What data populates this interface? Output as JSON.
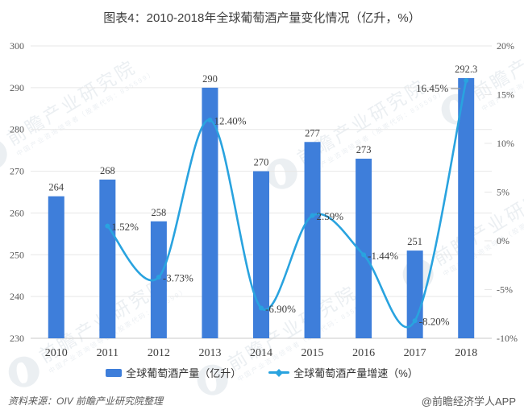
{
  "title": "图表4：2010-2018年全球葡萄酒产量变化情况（亿升，%）",
  "colors": {
    "bar": "#3E7EDA",
    "line": "#29A3DF",
    "grid": "#E7E7E7",
    "axis": "#C9C9C9",
    "tick_text": "#595959",
    "label_text": "#404040",
    "leader": "#999999"
  },
  "chart_data": {
    "type": "bar+line combo",
    "title": "图表4：2010-2018年全球葡萄酒产量变化情况（亿升，%）",
    "categories": [
      "2010",
      "2011",
      "2012",
      "2013",
      "2014",
      "2015",
      "2016",
      "2017",
      "2018"
    ],
    "series": [
      {
        "name": "全球葡萄酒产量（亿升）",
        "type": "bar",
        "axis": "left",
        "values": [
          264,
          268,
          258,
          290,
          270,
          277,
          273,
          251,
          292.3
        ],
        "labels": [
          "264",
          "268",
          "258",
          "290",
          "270",
          "277",
          "273",
          "251",
          "292.3"
        ]
      },
      {
        "name": "全球葡萄酒产量增速（%）",
        "type": "line",
        "axis": "right",
        "values": [
          null,
          1.52,
          -3.73,
          12.4,
          -6.9,
          2.59,
          -1.44,
          -8.2,
          16.45
        ],
        "labels": [
          null,
          "1.52%",
          "-3.73%",
          "12.40%",
          "-6.90%",
          "2.59%",
          "-1.44%",
          "-8.20%",
          "16.45%"
        ]
      }
    ],
    "left_axis": {
      "min": 230,
      "max": 300,
      "ticks": [
        "300",
        "290",
        "280",
        "270",
        "260",
        "250",
        "240",
        "230"
      ]
    },
    "right_axis": {
      "min": -10,
      "max": 20,
      "ticks": [
        "20%",
        "15%",
        "10%",
        "5%",
        "0%",
        "-5%",
        "-10%"
      ]
    },
    "grid": true,
    "legend_position": "bottom"
  },
  "legend": {
    "bar_label": "全球葡萄酒产量（亿升）",
    "line_label": "全球葡萄酒产量增速（%）"
  },
  "footer": {
    "source": "资料来源：OIV  前瞻产业研究院整理",
    "credit": "@前瞻经济学人APP"
  },
  "watermark": {
    "text": "前瞻产业研究院",
    "subtext": "中国产业咨询领导者（股票代码：835599）"
  }
}
